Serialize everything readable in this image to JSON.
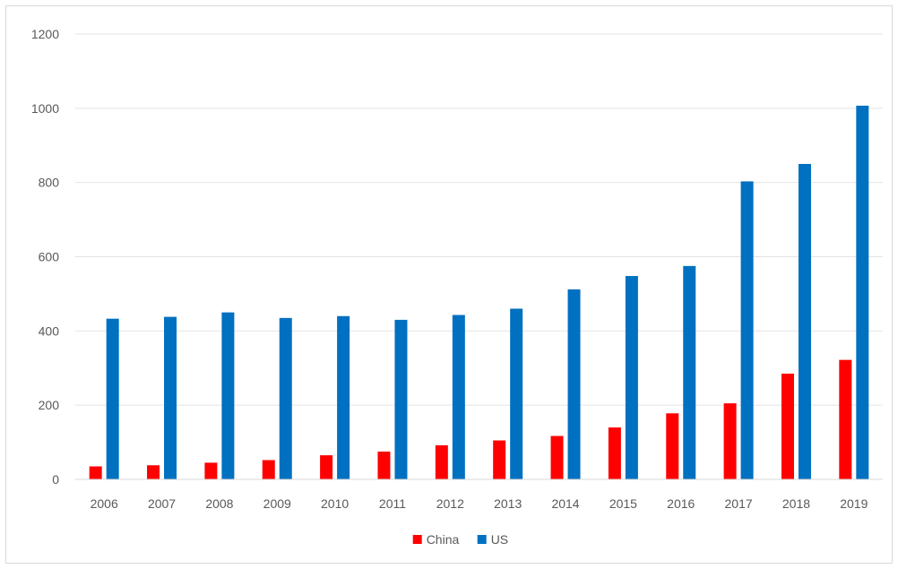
{
  "chart_data": {
    "type": "bar",
    "categories": [
      "2006",
      "2007",
      "2008",
      "2009",
      "2010",
      "2011",
      "2012",
      "2013",
      "2014",
      "2015",
      "2016",
      "2017",
      "2018",
      "2019"
    ],
    "series": [
      {
        "name": "China",
        "color": "#ff0000",
        "values": [
          35,
          38,
          45,
          52,
          65,
          75,
          92,
          105,
          117,
          140,
          178,
          205,
          285,
          322
        ]
      },
      {
        "name": "US",
        "color": "#0070c0",
        "values": [
          433,
          438,
          450,
          435,
          440,
          430,
          443,
          460,
          512,
          548,
          575,
          803,
          850,
          1007
        ]
      }
    ],
    "yticks": [
      "0",
      "200",
      "400",
      "600",
      "800",
      "1000",
      "1200"
    ],
    "ylim": [
      0,
      1200
    ],
    "grid": true,
    "legend_position": "bottom"
  }
}
